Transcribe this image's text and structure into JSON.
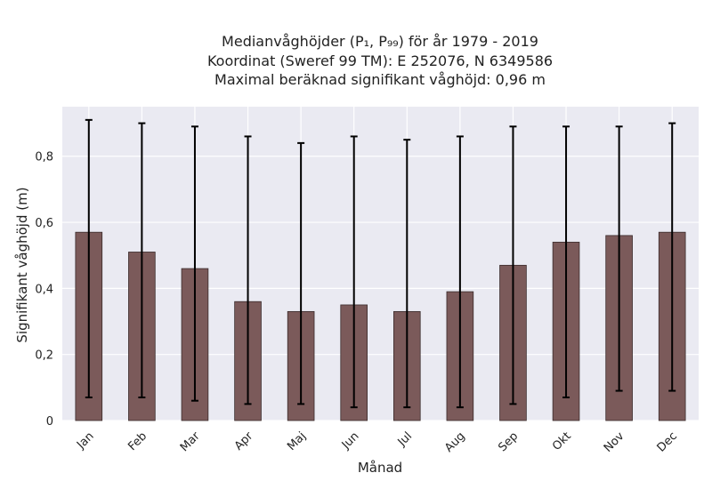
{
  "chart_data": {
    "type": "bar",
    "title_lines": [
      "Medianvåghöjder (P₁, P₉₉) för år 1979 - 2019",
      "Koordinat (Sweref 99 TM): E 252076, N 6349586",
      "Maximal beräknad signifikant våghöjd: 0,96 m"
    ],
    "xlabel": "Månad",
    "ylabel": "Signifikant våghöjd (m)",
    "categories": [
      "Jan",
      "Feb",
      "Mar",
      "Apr",
      "Maj",
      "Jun",
      "Jul",
      "Aug",
      "Sep",
      "Okt",
      "Nov",
      "Dec"
    ],
    "values": [
      0.57,
      0.51,
      0.46,
      0.36,
      0.33,
      0.35,
      0.33,
      0.39,
      0.47,
      0.54,
      0.56,
      0.57
    ],
    "error_low": [
      0.07,
      0.07,
      0.06,
      0.05,
      0.05,
      0.04,
      0.04,
      0.04,
      0.05,
      0.07,
      0.09,
      0.09
    ],
    "error_high": [
      0.91,
      0.9,
      0.89,
      0.86,
      0.84,
      0.86,
      0.85,
      0.86,
      0.89,
      0.89,
      0.89,
      0.9
    ],
    "ylim": [
      0,
      0.95
    ],
    "yticks": [
      0,
      0.2,
      0.4,
      0.6,
      0.8
    ],
    "ytick_labels": [
      "0",
      "0,2",
      "0,4",
      "0,6",
      "0,8"
    ],
    "grid": true,
    "colors": {
      "bar": "#7b5a5a",
      "bar_edge": "#3a2b2b",
      "background": "#eaeaf2",
      "grid": "#ffffff",
      "errorbar": "#000000"
    }
  }
}
